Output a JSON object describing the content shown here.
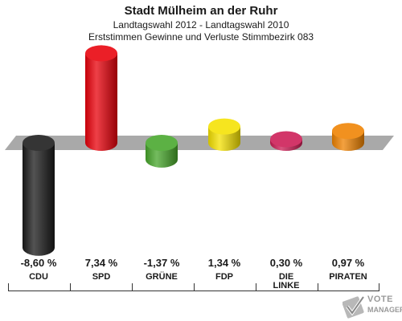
{
  "chart_data": {
    "type": "bar",
    "title": "Stadt Mülheim an der Ruhr",
    "subtitle": "Landtagswahl 2012 - Landtagswahl 2010",
    "subtitle2": "Erststimmen Gewinne und Verluste Stimmbezirk 083",
    "categories": [
      "CDU",
      "SPD",
      "GRÜNE",
      "FDP",
      "DIE LINKE",
      "PIRATEN"
    ],
    "values": [
      -8.6,
      7.34,
      -1.37,
      1.34,
      0.3,
      0.97
    ],
    "value_labels": [
      "-8,60 %",
      "7,34 %",
      "-1,37 %",
      "1,34 %",
      "0,30 %",
      "0,97 %"
    ],
    "category_lines": [
      [
        "CDU"
      ],
      [
        "SPD"
      ],
      [
        "GRÜNE"
      ],
      [
        "FDP"
      ],
      [
        "DIE",
        "LINKE"
      ],
      [
        "PIRATEN"
      ]
    ],
    "colors": [
      "#1a1a1a",
      "#e8000a",
      "#46a62a",
      "#f5e100",
      "#cc1b54",
      "#ef8200"
    ],
    "unit": "%",
    "grid": false
  },
  "logo": {
    "line1": "VOTE",
    "line2": "MANAGER"
  }
}
